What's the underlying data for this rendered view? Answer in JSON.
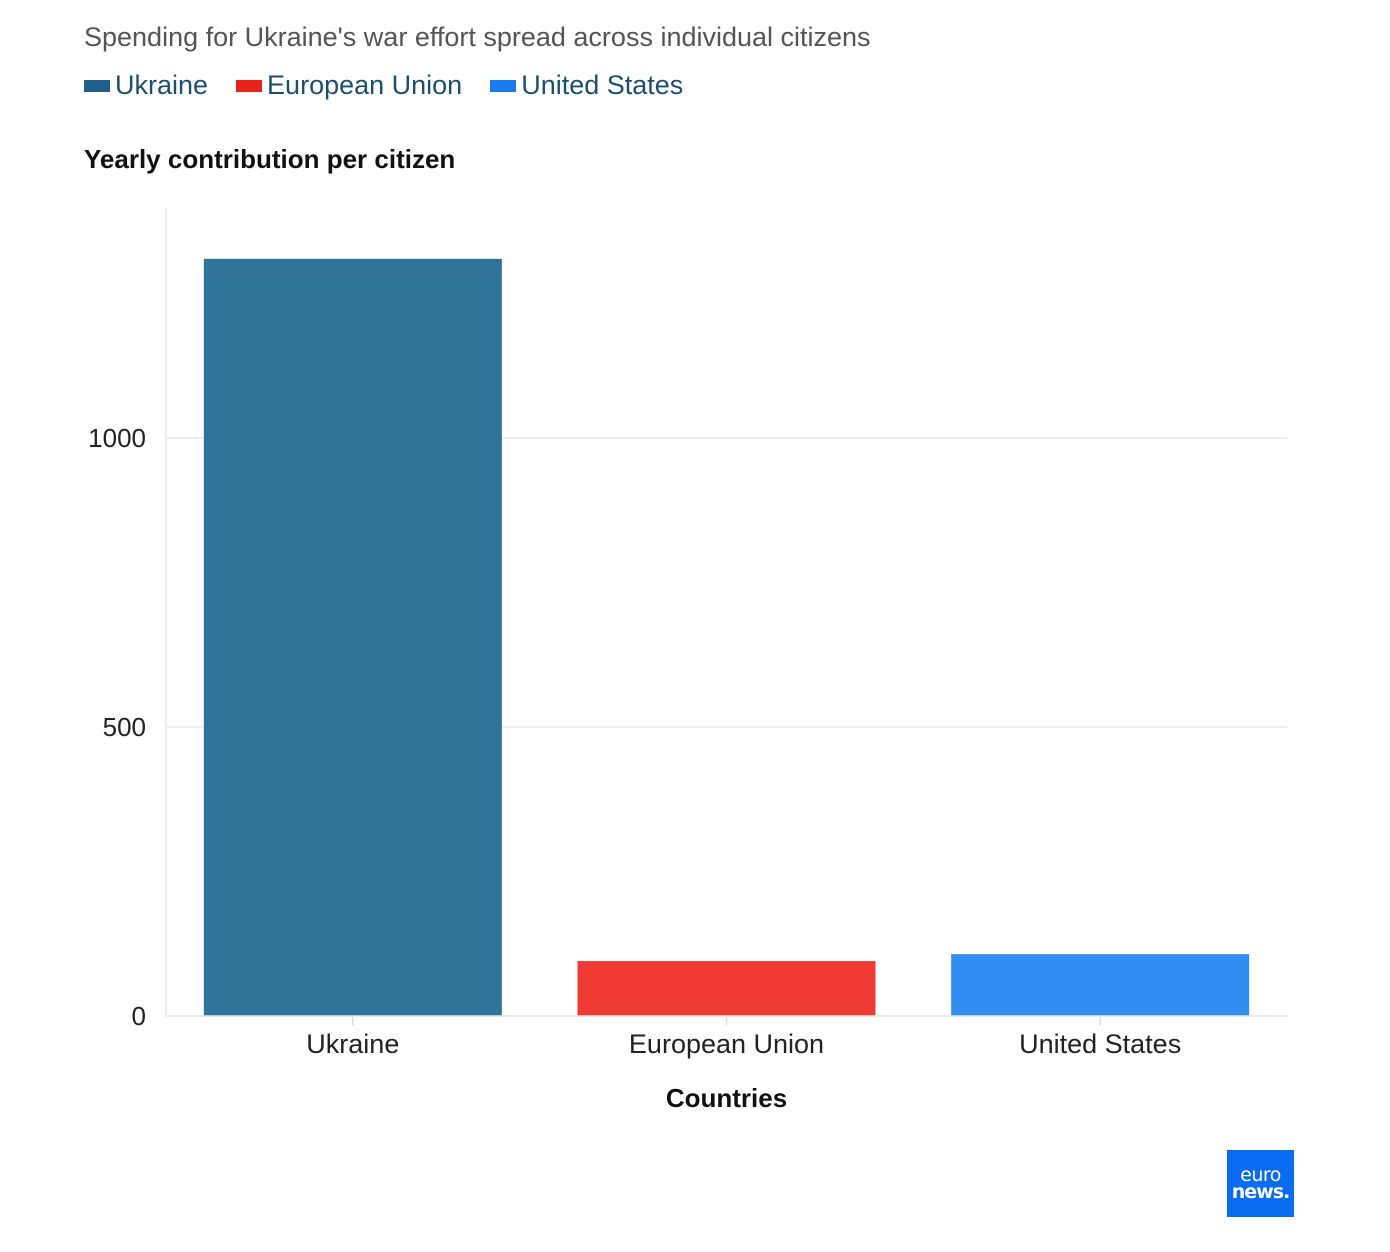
{
  "subtitle": "Spending for Ukraine's war effort spread across individual citizens",
  "legend": [
    {
      "label": "Ukraine",
      "color": "#1f5f8b"
    },
    {
      "label": "European Union",
      "color": "#e8231c"
    },
    {
      "label": "United States",
      "color": "#1a7cf0"
    }
  ],
  "logo": {
    "line1": "euro",
    "line2": "news."
  },
  "chart_data": {
    "type": "bar",
    "title": "",
    "ylabel": "Yearly contribution per citizen",
    "xlabel": "Countries",
    "categories": [
      "Ukraine",
      "European Union",
      "United States"
    ],
    "values": [
      1310,
      95,
      107
    ],
    "colors": [
      "#2f7399",
      "#ef3a33",
      "#338cf2"
    ],
    "ylim": [
      0,
      1400
    ],
    "yticks": [
      0,
      500,
      1000
    ],
    "grid": true,
    "legend_position": "top-left"
  }
}
